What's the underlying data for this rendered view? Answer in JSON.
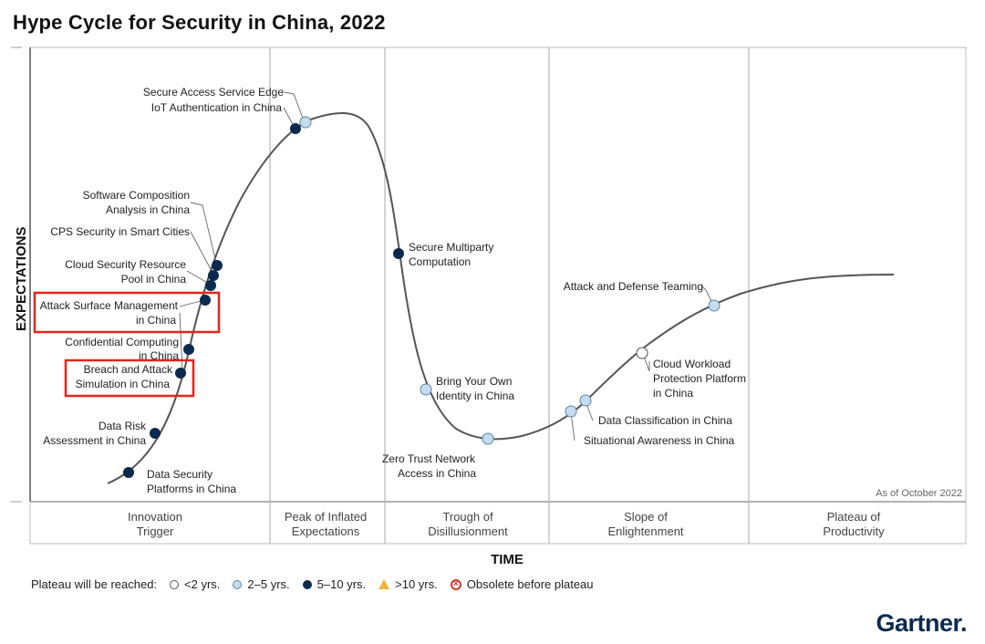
{
  "title": "Hype Cycle for Security in China, 2022",
  "chart_data": {
    "type": "hype-cycle",
    "y_axis_label": "EXPECTATIONS",
    "x_axis_label": "TIME",
    "as_of": "As of October 2022",
    "phases": [
      {
        "line1": "Innovation",
        "line2": "Trigger"
      },
      {
        "line1": "Peak of Inflated",
        "line2": "Expectations"
      },
      {
        "line1": "Trough of",
        "line2": "Disillusionment"
      },
      {
        "line1": "Slope of",
        "line2": "Enlightenment"
      },
      {
        "line1": "Plateau of",
        "line2": "Productivity"
      }
    ],
    "technologies": [
      {
        "name": "Secure Access Service Edge",
        "plateau": "2-5 yrs",
        "highlighted": false
      },
      {
        "name": "IoT Authentication in China",
        "plateau": "5-10 yrs",
        "highlighted": false
      },
      {
        "name": "Software Composition Analysis in China",
        "plateau": "5-10 yrs",
        "highlighted": false
      },
      {
        "name": "CPS Security in Smart Cities",
        "plateau": "5-10 yrs",
        "highlighted": false
      },
      {
        "name": "Cloud Security Resource Pool in China",
        "plateau": "5-10 yrs",
        "highlighted": false
      },
      {
        "name": "Attack Surface Management in China",
        "plateau": "5-10 yrs",
        "highlighted": true
      },
      {
        "name": "Confidential Computing in China",
        "plateau": "5-10 yrs",
        "highlighted": false
      },
      {
        "name": "Breach and Attack Simulation in China",
        "plateau": "5-10 yrs",
        "highlighted": true
      },
      {
        "name": "Data Risk Assessment in China",
        "plateau": "5-10 yrs",
        "highlighted": false
      },
      {
        "name": "Data Security Platforms in China",
        "plateau": "5-10 yrs",
        "highlighted": false
      },
      {
        "name": "Secure Multiparty Computation",
        "plateau": "5-10 yrs",
        "highlighted": false
      },
      {
        "name": "Bring Your Own Identity in China",
        "plateau": "2-5 yrs",
        "highlighted": false
      },
      {
        "name": "Zero Trust Network Access in China",
        "plateau": "2-5 yrs",
        "highlighted": false
      },
      {
        "name": "Data Classification in China",
        "plateau": "2-5 yrs",
        "highlighted": false
      },
      {
        "name": "Situational Awareness in China",
        "plateau": "2-5 yrs",
        "highlighted": false
      },
      {
        "name": "Cloud Workload Protection Platform in China",
        "plateau": "<2 yrs",
        "highlighted": false
      },
      {
        "name": "Attack and Defense Teaming",
        "plateau": "2-5 yrs",
        "highlighted": false
      }
    ],
    "labels": {
      "sase": "Secure Access Service Edge",
      "iot": "IoT Authentication in China",
      "sca1": "Software Composition",
      "sca2": "Analysis in China",
      "cps": "CPS Security in Smart Cities",
      "csrp1": "Cloud Security Resource",
      "csrp2": "Pool in China",
      "asm1": "Attack Surface Management",
      "asm2": "in China",
      "cc1": "Confidential Computing",
      "cc2": "in China",
      "bas1": "Breach and Attack",
      "bas2": "Simulation in China",
      "dra1": "Data Risk",
      "dra2": "Assessment in China",
      "dsp1": "Data Security",
      "dsp2": "Platforms in China",
      "smc1": "Secure Multiparty",
      "smc2": "Computation",
      "byoi1": "Bring Your Own",
      "byoi2": "Identity in China",
      "ztna1": "Zero Trust Network",
      "ztna2": "Access in China",
      "dc": "Data Classification in China",
      "sa": "Situational Awareness in China",
      "cwpp1": "Cloud Workload",
      "cwpp2": "Protection Platform",
      "cwpp3": "in China",
      "adt": "Attack and Defense Teaming"
    }
  },
  "legend": {
    "heading": "Plateau will be reached:",
    "items": [
      "<2 yrs.",
      "2–5 yrs.",
      "5–10 yrs.",
      ">10 yrs.",
      "Obsolete before plateau"
    ]
  },
  "brand": "Gartner.",
  "colors": {
    "dark": "#0c2a4d",
    "light": "#c6dcee",
    "highlight": "#e2261c",
    "curve": "#555555"
  }
}
